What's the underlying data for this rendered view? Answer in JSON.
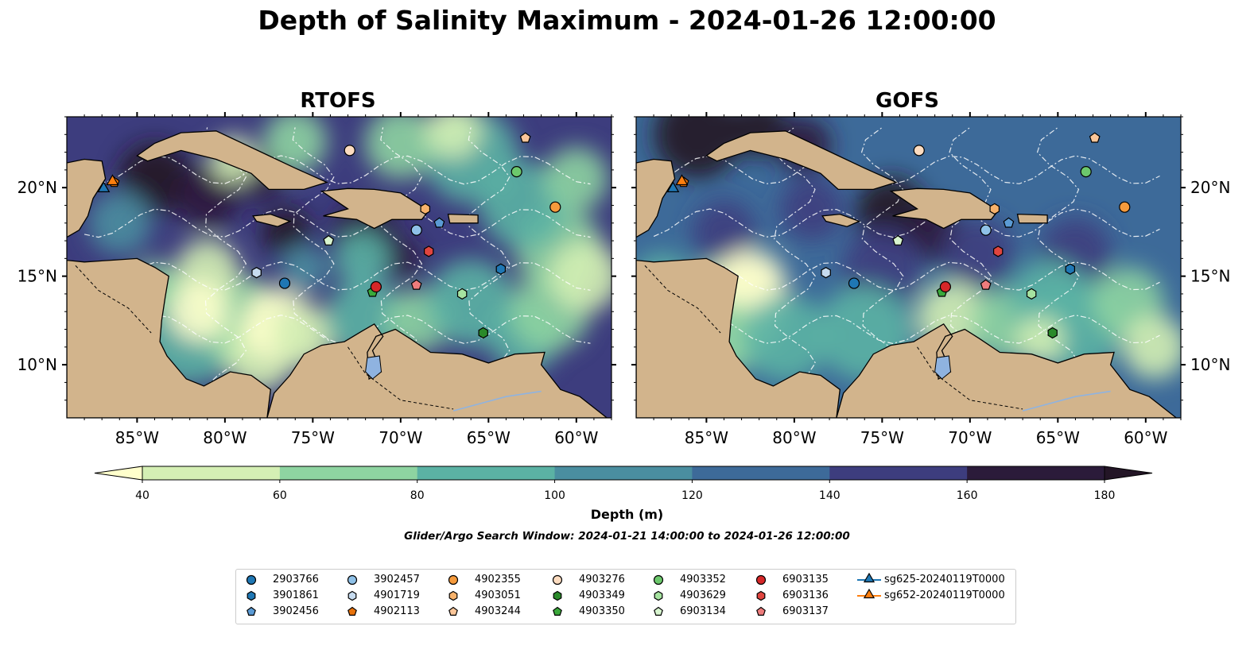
{
  "title": "Depth of Salinity Maximum - 2024-01-26 12:00:00",
  "panels": [
    {
      "title": "RTOFS",
      "variant": "rtofs"
    },
    {
      "title": "GOFS",
      "variant": "gofs"
    }
  ],
  "axes": {
    "lon_ticks": [
      "85°W",
      "80°W",
      "75°W",
      "70°W",
      "65°W",
      "60°W"
    ],
    "lat_ticks": [
      "20°N",
      "15°N",
      "10°N"
    ]
  },
  "colorbar": {
    "label": "Depth (m)",
    "ticks": [
      "40",
      "60",
      "80",
      "100",
      "120",
      "140",
      "160",
      "180"
    ],
    "colors": [
      "#ffffcc",
      "#d4efb4",
      "#8ed4a1",
      "#5bb2a4",
      "#4a8ea0",
      "#3d6a99",
      "#3d3d7e",
      "#2b1b3a",
      "#231526"
    ]
  },
  "search_window": "Glider/Argo Search Window: 2024-01-21 14:00:00 to 2024-01-26 12:00:00",
  "legend": [
    {
      "label": "2903766",
      "marker": "circle",
      "color": "#1f77b4"
    },
    {
      "label": "3901861",
      "marker": "hexagon",
      "color": "#1f77b4"
    },
    {
      "label": "3902456",
      "marker": "pentagon",
      "color": "#5b9bd5"
    },
    {
      "label": "3902457",
      "marker": "circle",
      "color": "#8fc1e8"
    },
    {
      "label": "4901719",
      "marker": "hexagon",
      "color": "#c6dbef"
    },
    {
      "label": "4902113",
      "marker": "pentagon",
      "color": "#e8720c"
    },
    {
      "label": "4902355",
      "marker": "circle",
      "color": "#f59a3c"
    },
    {
      "label": "4903051",
      "marker": "hexagon",
      "color": "#f7b26b"
    },
    {
      "label": "4903244",
      "marker": "pentagon",
      "color": "#fbc699"
    },
    {
      "label": "4903276",
      "marker": "circle",
      "color": "#fcdcc0"
    },
    {
      "label": "4903349",
      "marker": "hexagon",
      "color": "#2a8a2a"
    },
    {
      "label": "4903350",
      "marker": "pentagon",
      "color": "#3aa83a"
    },
    {
      "label": "4903352",
      "marker": "circle",
      "color": "#6cc86c"
    },
    {
      "label": "4903629",
      "marker": "hexagon",
      "color": "#a6e3a0"
    },
    {
      "label": "6903134",
      "marker": "pentagon",
      "color": "#d8f5cf"
    },
    {
      "label": "6903135",
      "marker": "circle",
      "color": "#d62728"
    },
    {
      "label": "6903136",
      "marker": "hexagon",
      "color": "#e0453f"
    },
    {
      "label": "6903137",
      "marker": "pentagon",
      "color": "#ee7c7c"
    },
    {
      "label": "sg625-20240119T0000",
      "marker": "triangle-line",
      "color": "#1f77b4"
    },
    {
      "label": "sg652-20240119T0000",
      "marker": "triangle-line",
      "color": "#ff7f0e"
    }
  ],
  "chart_data": {
    "type": "heatmap",
    "lon_range": [
      -89,
      -58
    ],
    "lat_range": [
      7,
      24
    ],
    "levels": [
      40,
      60,
      80,
      100,
      120,
      140,
      160,
      180
    ],
    "extend": "both",
    "points": [
      {
        "id": "2903766",
        "lon": -76.6,
        "lat": 14.6
      },
      {
        "id": "3901861",
        "lon": -64.3,
        "lat": 15.4
      },
      {
        "id": "3902456",
        "lon": -67.8,
        "lat": 18.0
      },
      {
        "id": "3902457",
        "lon": -69.1,
        "lat": 17.6
      },
      {
        "id": "4901719",
        "lon": -78.2,
        "lat": 15.2
      },
      {
        "id": "4902113",
        "lon": -86.3,
        "lat": 20.3
      },
      {
        "id": "4902355",
        "lon": -61.2,
        "lat": 18.9
      },
      {
        "id": "4903051",
        "lon": -68.6,
        "lat": 18.8
      },
      {
        "id": "4903244",
        "lon": -62.9,
        "lat": 22.8
      },
      {
        "id": "4903276",
        "lon": -72.9,
        "lat": 22.1
      },
      {
        "id": "4903349",
        "lon": -65.3,
        "lat": 11.8
      },
      {
        "id": "4903350",
        "lon": -71.6,
        "lat": 14.1
      },
      {
        "id": "4903352",
        "lon": -63.4,
        "lat": 20.9
      },
      {
        "id": "4903629",
        "lon": -66.5,
        "lat": 14.0
      },
      {
        "id": "6903134",
        "lon": -74.1,
        "lat": 17.0
      },
      {
        "id": "6903135",
        "lon": -71.4,
        "lat": 14.4
      },
      {
        "id": "6903136",
        "lon": -68.4,
        "lat": 16.4
      },
      {
        "id": "6903137",
        "lon": -69.1,
        "lat": 14.5
      },
      {
        "id": "sg625-20240119T0000",
        "lon": -86.9,
        "lat": 19.9
      },
      {
        "id": "sg652-20240119T0000",
        "lon": -86.4,
        "lat": 20.3
      }
    ]
  }
}
